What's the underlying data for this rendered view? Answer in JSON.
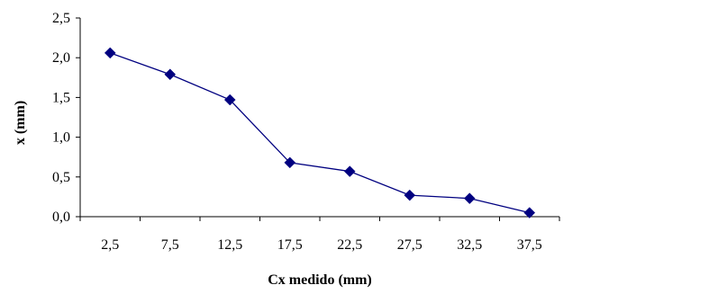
{
  "chart_data": {
    "type": "line",
    "title": "",
    "xlabel": "Cx medido (mm)",
    "ylabel": "x (mm)",
    "categories": [
      "2,5",
      "7,5",
      "12,5",
      "17,5",
      "22,5",
      "27,5",
      "32,5",
      "37,5"
    ],
    "series": [
      {
        "values": [
          2.06,
          1.79,
          1.47,
          0.68,
          0.57,
          0.27,
          0.23,
          0.05
        ]
      }
    ],
    "ylim": [
      0,
      2.5
    ],
    "yticks": [
      "0,0",
      "0,5",
      "1,0",
      "1,5",
      "2,0",
      "2,5"
    ],
    "ytick_values": [
      0,
      0.5,
      1.0,
      1.5,
      2.0,
      2.5
    ],
    "grid": false,
    "legend": "none",
    "colors": {
      "series": "#000080",
      "axis": "#000000"
    }
  }
}
